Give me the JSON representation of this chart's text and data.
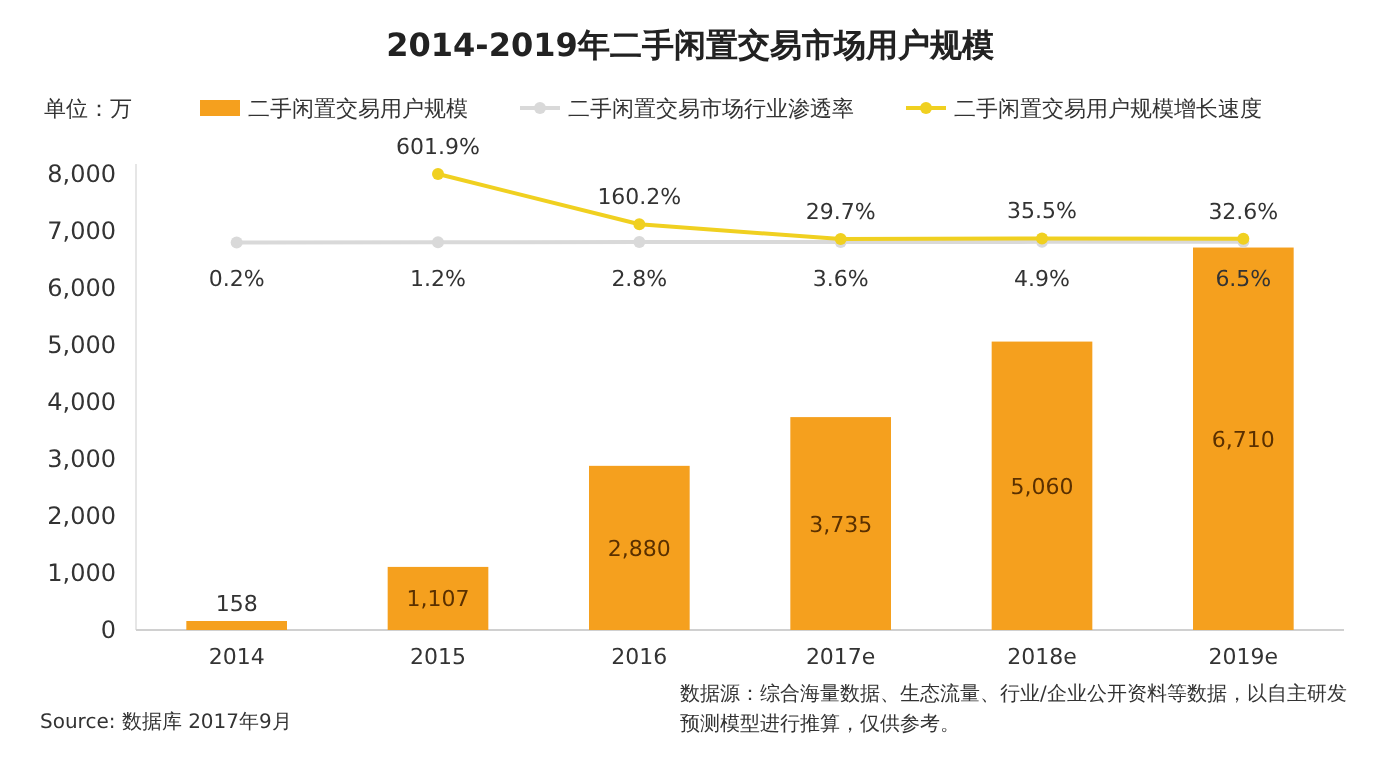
{
  "chart_data": {
    "type": "bar",
    "title": "2014-2019年二手闲置交易市场用户规模",
    "ylabel": "单位：万",
    "categories": [
      "2014",
      "2015",
      "2016",
      "2017e",
      "2018e",
      "2019e"
    ],
    "series": [
      {
        "name": "二手闲置交易用户规模",
        "color": "#f5a01e",
        "values": [
          158,
          1107,
          2880,
          3735,
          5060,
          6710
        ],
        "value_labels": [
          "158",
          "1,107",
          "2,880",
          "3,735",
          "5,060",
          "6,710"
        ]
      },
      {
        "name": "二手闲置交易市场行业渗透率",
        "type": "line",
        "axis": "y2",
        "color": "#d9d9d9",
        "marker": "circle",
        "values": [
          0.2,
          1.2,
          2.8,
          3.6,
          4.9,
          6.5
        ],
        "value_labels": [
          "0.2%",
          "1.2%",
          "2.8%",
          "3.6%",
          "4.9%",
          "6.5%"
        ]
      },
      {
        "name": "二手闲置交易用户规模增长速度",
        "type": "line",
        "axis": "y2",
        "color": "#f0d020",
        "marker": "circle",
        "values": [
          null,
          601.9,
          160.2,
          29.7,
          35.5,
          32.6
        ],
        "value_labels": [
          null,
          "601.9%",
          "160.2%",
          "29.7%",
          "35.5%",
          "32.6%"
        ]
      }
    ],
    "ylim": [
      0,
      8000
    ],
    "yticks": [
      0,
      {
        "value": 1000,
        "label": "1,000"
      },
      {
        "value": 2000,
        "label": "2,000"
      },
      {
        "value": 3000,
        "label": "3,000"
      },
      {
        "value": 4000,
        "label": "4,000"
      },
      {
        "value": 5000,
        "label": "5,000"
      },
      {
        "value": 6000,
        "label": "6,000"
      },
      {
        "value": 7000,
        "label": "7,000"
      },
      {
        "value": 8000,
        "label": "8,000"
      }
    ],
    "legend": "top",
    "grid": false,
    "annotations": [
      "Source:  数据库 2017年9月",
      "数据源：综合海量数据、生态流量、行业/企业公开资料等数据，以自主研发预测模型进行推算，仅供参考。"
    ]
  }
}
